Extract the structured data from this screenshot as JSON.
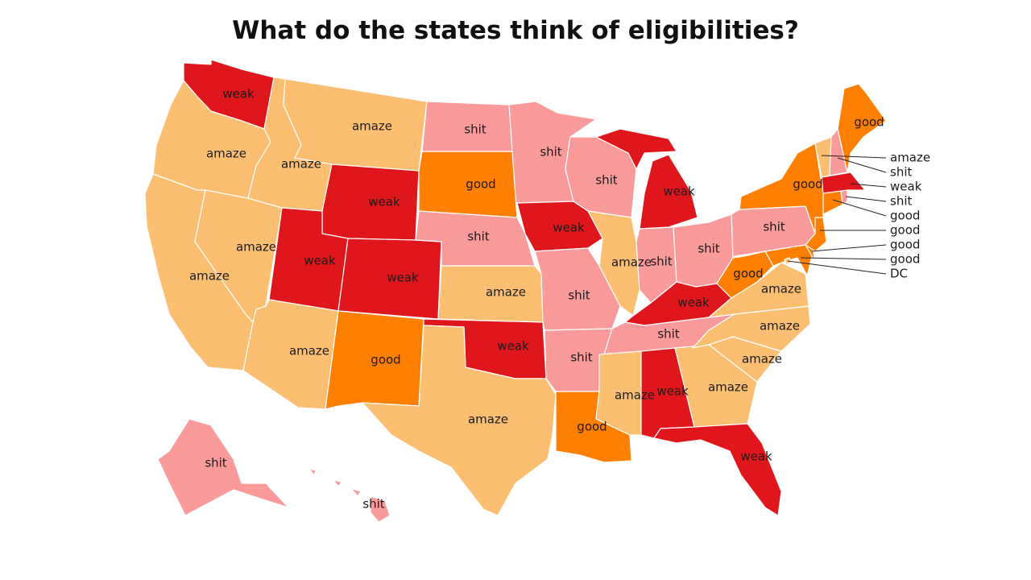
{
  "title": "What do the states think of eligibilities?",
  "colors": {
    "amaze": "#fcbf72",
    "shit": "#fa9a9a",
    "weak": "#e0161d",
    "good": "#ff8000"
  },
  "states": [
    {
      "id": "WA",
      "category": "weak"
    },
    {
      "id": "OR",
      "category": "amaze"
    },
    {
      "id": "CA",
      "category": "amaze"
    },
    {
      "id": "NV",
      "category": "amaze"
    },
    {
      "id": "ID",
      "category": "amaze"
    },
    {
      "id": "MT",
      "category": "amaze"
    },
    {
      "id": "WY",
      "category": "weak"
    },
    {
      "id": "UT",
      "category": "weak"
    },
    {
      "id": "AZ",
      "category": "amaze"
    },
    {
      "id": "CO",
      "category": "weak"
    },
    {
      "id": "NM",
      "category": "good"
    },
    {
      "id": "ND",
      "category": "shit"
    },
    {
      "id": "SD",
      "category": "good"
    },
    {
      "id": "NE",
      "category": "shit"
    },
    {
      "id": "KS",
      "category": "amaze"
    },
    {
      "id": "OK",
      "category": "weak"
    },
    {
      "id": "TX",
      "category": "amaze"
    },
    {
      "id": "MN",
      "category": "shit"
    },
    {
      "id": "IA",
      "category": "weak"
    },
    {
      "id": "MO",
      "category": "shit"
    },
    {
      "id": "AR",
      "category": "shit"
    },
    {
      "id": "LA",
      "category": "good"
    },
    {
      "id": "WI",
      "category": "shit"
    },
    {
      "id": "IL",
      "category": "amaze"
    },
    {
      "id": "MI",
      "category": "weak"
    },
    {
      "id": "IN",
      "category": "shit"
    },
    {
      "id": "OH",
      "category": "shit"
    },
    {
      "id": "KY",
      "category": "weak"
    },
    {
      "id": "TN",
      "category": "shit"
    },
    {
      "id": "MS",
      "category": "amaze"
    },
    {
      "id": "AL",
      "category": "weak"
    },
    {
      "id": "GA",
      "category": "amaze"
    },
    {
      "id": "FL",
      "category": "weak"
    },
    {
      "id": "SC",
      "category": "amaze"
    },
    {
      "id": "NC",
      "category": "amaze"
    },
    {
      "id": "VA",
      "category": "amaze"
    },
    {
      "id": "WV",
      "category": "good"
    },
    {
      "id": "PA",
      "category": "shit"
    },
    {
      "id": "NY",
      "category": "good"
    },
    {
      "id": "ME",
      "category": "good"
    },
    {
      "id": "VT",
      "category": "amaze"
    },
    {
      "id": "NH",
      "category": "shit"
    },
    {
      "id": "MA",
      "category": "weak"
    },
    {
      "id": "RI",
      "category": "shit"
    },
    {
      "id": "CT",
      "category": "good"
    },
    {
      "id": "NJ",
      "category": "good"
    },
    {
      "id": "DE",
      "category": "good"
    },
    {
      "id": "MD",
      "category": "good"
    },
    {
      "id": "DC",
      "category": "amaze"
    },
    {
      "id": "AK",
      "category": "shit"
    },
    {
      "id": "HI",
      "category": "shit"
    }
  ],
  "labels": {
    "WA": "weak",
    "OR": "amaze",
    "CA": "amaze",
    "NV": "amaze",
    "ID": "amaze",
    "MT": "amaze",
    "WY": "weak",
    "UT": "weak",
    "AZ": "amaze",
    "CO": "weak",
    "NM": "good",
    "ND": "shit",
    "SD": "good",
    "NE": "shit",
    "KS": "amaze",
    "OK": "weak",
    "TX": "amaze",
    "MN": "shit",
    "IA": "weak",
    "MO": "shit",
    "AR": "shit",
    "LA": "good",
    "WI": "shit",
    "IL": "amaze",
    "MI": "weak",
    "IN": "shit",
    "OH": "shit",
    "KY": "weak",
    "TN": "shit",
    "MS": "amaze",
    "AL": "weak",
    "GA": "amaze",
    "FL": "weak",
    "SC": "amaze",
    "NC": "amaze",
    "VA": "amaze",
    "WV": "good",
    "PA": "shit",
    "NY": "good",
    "ME": "good",
    "AK": "shit",
    "HI": "shit"
  },
  "callouts": [
    "amaze",
    "shit",
    "weak",
    "shit",
    "good",
    "good",
    "good",
    "good",
    "DC"
  ]
}
